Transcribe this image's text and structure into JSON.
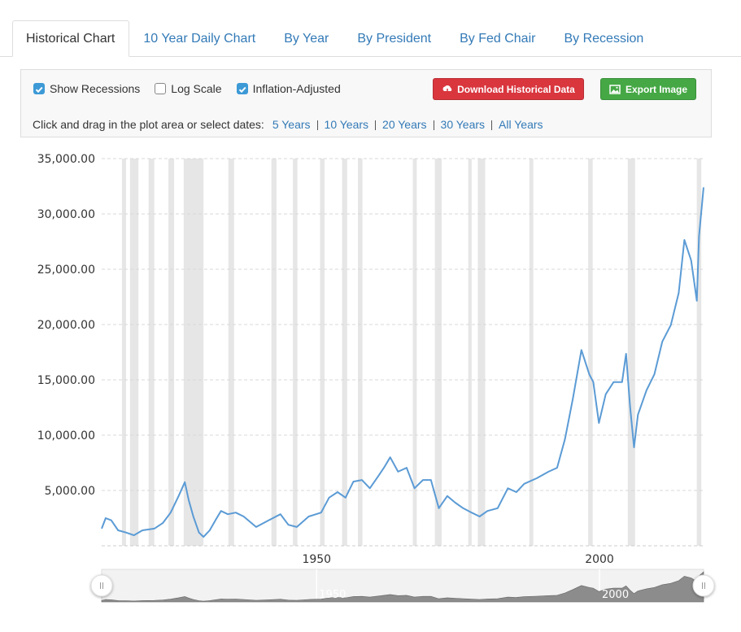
{
  "tabs": [
    {
      "label": "Historical Chart",
      "active": true
    },
    {
      "label": "10 Year Daily Chart",
      "active": false
    },
    {
      "label": "By Year",
      "active": false
    },
    {
      "label": "By President",
      "active": false
    },
    {
      "label": "By Fed Chair",
      "active": false
    },
    {
      "label": "By Recession",
      "active": false
    }
  ],
  "controls": {
    "checkboxes": [
      {
        "label": "Show Recessions",
        "checked": true
      },
      {
        "label": "Log Scale",
        "checked": false
      },
      {
        "label": "Inflation-Adjusted",
        "checked": true
      }
    ],
    "buttons": [
      {
        "label": "Download Historical Data",
        "color": "#d9363e"
      },
      {
        "label": "Export Image",
        "color": "#45a845"
      }
    ],
    "date_prompt": "Click and drag in the plot area or select dates:",
    "ranges": [
      "5 Years",
      "10 Years",
      "20 Years",
      "30 Years",
      "All Years"
    ]
  },
  "chart_data": {
    "type": "line",
    "x": [
      1912.0,
      1912.7,
      1913.7,
      1914.9,
      1916.3,
      1917.7,
      1919.2,
      1921.3,
      1922.8,
      1924.2,
      1925.6,
      1926.7,
      1927.4,
      1928.2,
      1929.2,
      1930.0,
      1931.1,
      1932.1,
      1933.1,
      1934.3,
      1935.7,
      1937.1,
      1939.3,
      1941.5,
      1943.6,
      1945.0,
      1946.5,
      1948.6,
      1950.8,
      1952.2,
      1953.7,
      1955.1,
      1956.5,
      1958.0,
      1959.4,
      1960.9,
      1961.9,
      1963.0,
      1964.4,
      1965.9,
      1967.3,
      1968.8,
      1970.2,
      1971.6,
      1973.1,
      1974.5,
      1975.9,
      1977.4,
      1978.8,
      1980.2,
      1982.0,
      1983.8,
      1985.3,
      1986.7,
      1988.9,
      1991.0,
      1992.5,
      1993.9,
      1995.3,
      1996.8,
      1998.2,
      1998.9,
      1999.9,
      2001.1,
      2002.5,
      2004.0,
      2004.7,
      2005.4,
      2006.1,
      2006.8,
      2008.3,
      2009.7,
      2011.1,
      2012.6,
      2014.0,
      2015.0,
      2016.2,
      2017.2,
      2017.6,
      2018.4
    ],
    "series": [
      {
        "color": "#5b9bd5",
        "values": [
          1550,
          2500,
          2300,
          1400,
          1200,
          950,
          1400,
          1550,
          2050,
          3000,
          4500,
          5750,
          4100,
          2650,
          1200,
          800,
          1400,
          2300,
          3150,
          2850,
          3000,
          2650,
          1700,
          2300,
          2850,
          1900,
          1700,
          2650,
          3000,
          4350,
          4850,
          4350,
          5800,
          5950,
          5200,
          6300,
          7050,
          8000,
          6700,
          7050,
          5200,
          5950,
          5950,
          3400,
          4500,
          3900,
          3400,
          3000,
          2650,
          3150,
          3400,
          5200,
          4850,
          5600,
          6100,
          6700,
          7050,
          9650,
          13300,
          17700,
          15500,
          14800,
          11100,
          13700,
          14800,
          14800,
          17350,
          12600,
          8900,
          11850,
          14050,
          15500,
          18450,
          19950,
          22850,
          27650,
          25800,
          22150,
          28000,
          32400
        ]
      }
    ],
    "recessions": [
      [
        1915.6,
        1916.3
      ],
      [
        1917.0,
        1918.5
      ],
      [
        1920.3,
        1921.3
      ],
      [
        1923.8,
        1924.8
      ],
      [
        1926.5,
        1930.0
      ],
      [
        1934.4,
        1935.4
      ],
      [
        1942.0,
        1942.9
      ],
      [
        1945.8,
        1946.6
      ],
      [
        1950.6,
        1951.4
      ],
      [
        1954.5,
        1955.4
      ],
      [
        1957.3,
        1958.1
      ],
      [
        1967.0,
        1967.7
      ],
      [
        1970.9,
        1972.1
      ],
      [
        1976.8,
        1977.4
      ],
      [
        1978.5,
        1979.8
      ],
      [
        1987.6,
        1988.3
      ],
      [
        1998.0,
        1998.8
      ],
      [
        2005.0,
        2006.3
      ],
      [
        2017.2,
        2018.0
      ]
    ],
    "recession_color": "#e6e6e6",
    "xlim": [
      1912,
      2018.4
    ],
    "xticks": [
      1950,
      2000
    ],
    "ylim": [
      0,
      35000
    ],
    "yticks": [
      {
        "value": 5000,
        "label": "5,000.00"
      },
      {
        "value": 10000,
        "label": "10,000.00"
      },
      {
        "value": 15000,
        "label": "15,000.00"
      },
      {
        "value": 20000,
        "label": "20,000.00"
      },
      {
        "value": 25000,
        "label": "25,000.00"
      },
      {
        "value": 30000,
        "label": "30,000.00"
      },
      {
        "value": 35000,
        "label": "35,000.00"
      }
    ],
    "grid": true,
    "navigator_color": "#8c8c8c"
  }
}
